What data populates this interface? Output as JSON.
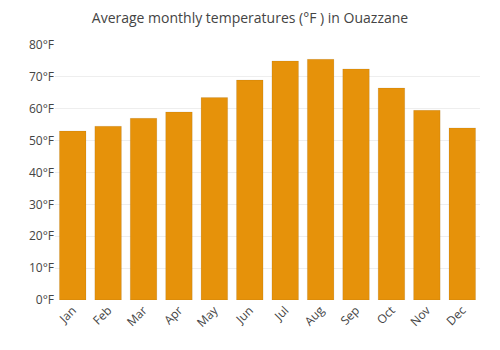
{
  "chart_data": {
    "type": "bar",
    "title": "Average monthly temperatures (°F ) in Ouazzane",
    "categories": [
      "Jan",
      "Feb",
      "Mar",
      "Apr",
      "May",
      "Jun",
      "Jul",
      "Aug",
      "Sep",
      "Oct",
      "Nov",
      "Dec"
    ],
    "values": [
      53.0,
      54.5,
      57.0,
      59.0,
      63.5,
      69.0,
      75.0,
      75.5,
      72.5,
      66.5,
      59.5,
      54.0
    ],
    "color": "#E6920A",
    "ylim": [
      0,
      80
    ],
    "yticks": [
      {
        "value": 0,
        "label": "0°F"
      },
      {
        "value": 10,
        "label": "10°F"
      },
      {
        "value": 20,
        "label": "20°F"
      },
      {
        "value": 30,
        "label": "30°F"
      },
      {
        "value": 40,
        "label": "40°F"
      },
      {
        "value": 50,
        "label": "50°F"
      },
      {
        "value": 60,
        "label": "60°F"
      },
      {
        "value": 70,
        "label": "70°F"
      },
      {
        "value": 80,
        "label": "80°F"
      }
    ],
    "grid": true
  }
}
